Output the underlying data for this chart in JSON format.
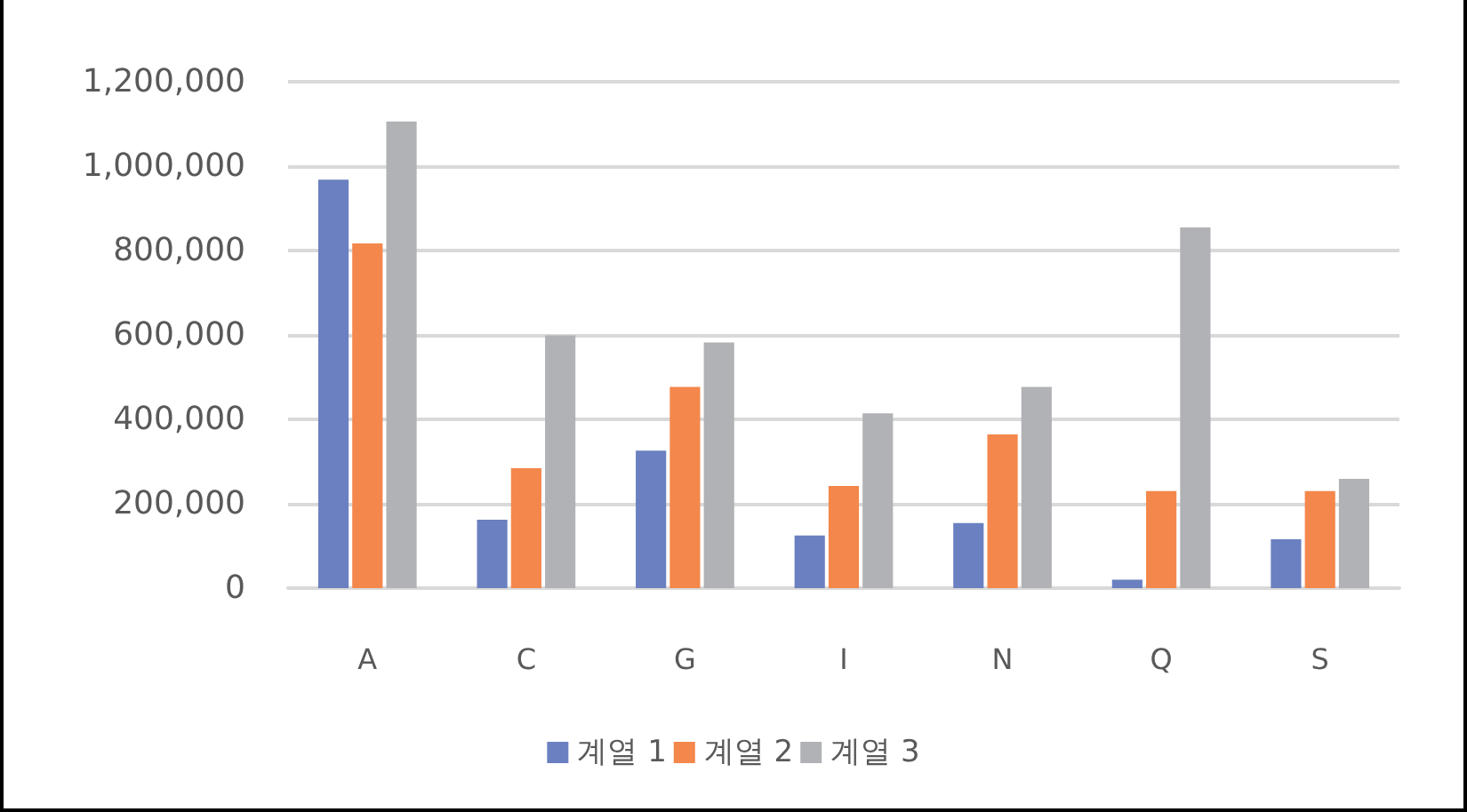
{
  "chart_data": {
    "type": "bar",
    "categories": [
      "A",
      "C",
      "G",
      "I",
      "N",
      "Q",
      "S"
    ],
    "series": [
      {
        "name": "계열 1",
        "color": "#6a80c0",
        "values": [
          968000,
          162000,
          326000,
          125000,
          154000,
          20000,
          116000
        ]
      },
      {
        "name": "계열 2",
        "color": "#f4874b",
        "values": [
          817000,
          284000,
          477000,
          242000,
          364000,
          230000,
          230000
        ]
      },
      {
        "name": "계열 3",
        "color": "#b1b2b5",
        "values": [
          1106000,
          599000,
          582000,
          414000,
          477000,
          855000,
          259000
        ]
      }
    ],
    "ylim": [
      0,
      1200000
    ],
    "yticks": [
      0,
      {
        "value": 200000,
        "label": "200,000"
      },
      {
        "value": 400000,
        "label": "400,000"
      },
      {
        "value": 600000,
        "label": "600,000"
      },
      {
        "value": 800000,
        "label": "800,000"
      },
      {
        "value": 1000000,
        "label": "1,000,000"
      },
      {
        "value": 1200000,
        "label": "1,200,000"
      }
    ],
    "grid": "y",
    "legend": "bottom"
  }
}
